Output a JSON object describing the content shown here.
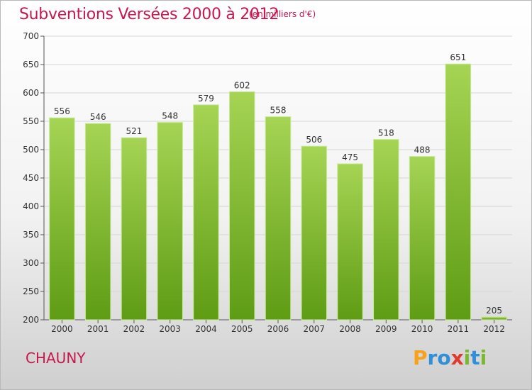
{
  "header": {
    "title": "Subventions Versées 2000 à 2012",
    "subtitle": "(en milliers d'€)"
  },
  "footer": {
    "place": "CHAUNY",
    "logo": {
      "letters": [
        "P",
        "r",
        "o",
        "x",
        "i",
        "t",
        "i"
      ],
      "colors": [
        "#f7a21b",
        "#2f8fd8",
        "#2f8fd8",
        "#e03a2c",
        "#7cb82f",
        "#2f8fd8",
        "#7cb82f"
      ]
    }
  },
  "colors": {
    "bar_top": "#a6d454",
    "bar_bottom": "#5e9c14",
    "title": "#c8174f"
  },
  "chart_data": {
    "type": "bar",
    "categories": [
      "2000",
      "2001",
      "2002",
      "2003",
      "2004",
      "2005",
      "2006",
      "2007",
      "2008",
      "2009",
      "2010",
      "2011",
      "2012"
    ],
    "values": [
      556,
      546,
      521,
      548,
      579,
      602,
      558,
      506,
      475,
      518,
      488,
      651,
      205
    ],
    "ylim": [
      200,
      700
    ],
    "yticks": [
      200,
      250,
      300,
      350,
      400,
      450,
      500,
      550,
      600,
      650,
      700
    ],
    "grid": true
  }
}
